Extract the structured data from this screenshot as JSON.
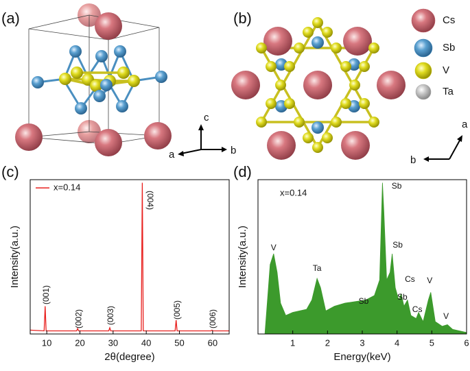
{
  "panel_labels": [
    "(a)",
    "(b)",
    "(c)",
    "(d)"
  ],
  "structure_a": {
    "axes": [
      "c",
      "a",
      "b"
    ]
  },
  "structure_b": {
    "axes": [
      "a",
      "b"
    ]
  },
  "atom_legend": [
    {
      "name": "Cs",
      "color": "#c05a64"
    },
    {
      "name": "Sb",
      "color": "#3c84b8"
    },
    {
      "name": "V",
      "color": "#c8c010"
    },
    {
      "name": "Ta",
      "color": "#a8a8a8"
    }
  ],
  "chart_data": [
    {
      "type": "line",
      "xlabel": "2θ(degree)",
      "ylabel": "Intensity(a.u.)",
      "x": [
        5,
        9.2,
        9.5,
        9.8,
        19.0,
        19.3,
        19.6,
        28.7,
        29.0,
        29.3,
        38.5,
        38.8,
        39.1,
        48.7,
        49.0,
        49.3,
        59.5,
        59.8,
        60.1,
        65
      ],
      "series": [
        {
          "name": "x=0.14",
          "color": "#e8201e",
          "values": [
            2.5,
            2,
            18,
            2,
            2,
            3.5,
            2,
            2,
            4,
            2,
            2,
            98,
            2,
            2,
            9,
            2,
            2,
            2.5,
            2,
            2
          ]
        }
      ],
      "xlim": [
        5,
        65
      ],
      "ylim": [
        0,
        100
      ],
      "xticks": [
        10,
        20,
        30,
        40,
        50,
        60
      ],
      "legend": "upper left",
      "annotations": [
        {
          "text": "(001)",
          "x": 9.5
        },
        {
          "text": "(002)",
          "x": 19.3
        },
        {
          "text": "(003)",
          "x": 29
        },
        {
          "text": "(004)",
          "x": 38.8
        },
        {
          "text": "(005)",
          "x": 49
        },
        {
          "text": "(006)",
          "x": 59.8
        }
      ]
    },
    {
      "type": "area",
      "xlabel": "Energy(keV)",
      "ylabel": "Intensity(a.u.)",
      "label": "x=0.14",
      "color": "#3c9a2c",
      "x": [
        0.2,
        0.3,
        0.35,
        0.45,
        0.55,
        0.65,
        0.8,
        1.0,
        1.2,
        1.4,
        1.55,
        1.7,
        1.8,
        1.95,
        2.2,
        2.5,
        2.8,
        3.1,
        3.35,
        3.5,
        3.58,
        3.62,
        3.7,
        3.8,
        3.86,
        3.95,
        4.05,
        4.12,
        4.2,
        4.3,
        4.4,
        4.55,
        4.62,
        4.75,
        4.9,
        4.97,
        5.1,
        5.3,
        5.45,
        5.6,
        6.0
      ],
      "values": [
        0,
        30,
        45,
        52,
        40,
        20,
        12,
        14,
        15,
        16,
        22,
        36,
        30,
        15,
        18,
        20,
        21,
        22,
        25,
        35,
        98,
        80,
        35,
        40,
        52,
        30,
        22,
        26,
        18,
        22,
        12,
        10,
        14,
        8,
        22,
        27,
        8,
        5,
        6,
        3,
        1
      ],
      "xlim": [
        0,
        6
      ],
      "ylim": [
        0,
        100
      ],
      "xticks": [
        1,
        2,
        3,
        4,
        5,
        6
      ],
      "annotations": [
        {
          "text": "V",
          "x": 0.45
        },
        {
          "text": "Ta",
          "x": 1.7
        },
        {
          "text": "Sb",
          "x": 3.04
        },
        {
          "text": "Sb",
          "x": 3.83
        },
        {
          "text": "Sb",
          "x": 3.9
        },
        {
          "text": "Cs",
          "x": 4.37
        },
        {
          "text": "Sb",
          "x": 4.15
        },
        {
          "text": "Cs",
          "x": 4.58
        },
        {
          "text": "V",
          "x": 4.94
        },
        {
          "text": "V",
          "x": 5.41
        }
      ]
    }
  ]
}
